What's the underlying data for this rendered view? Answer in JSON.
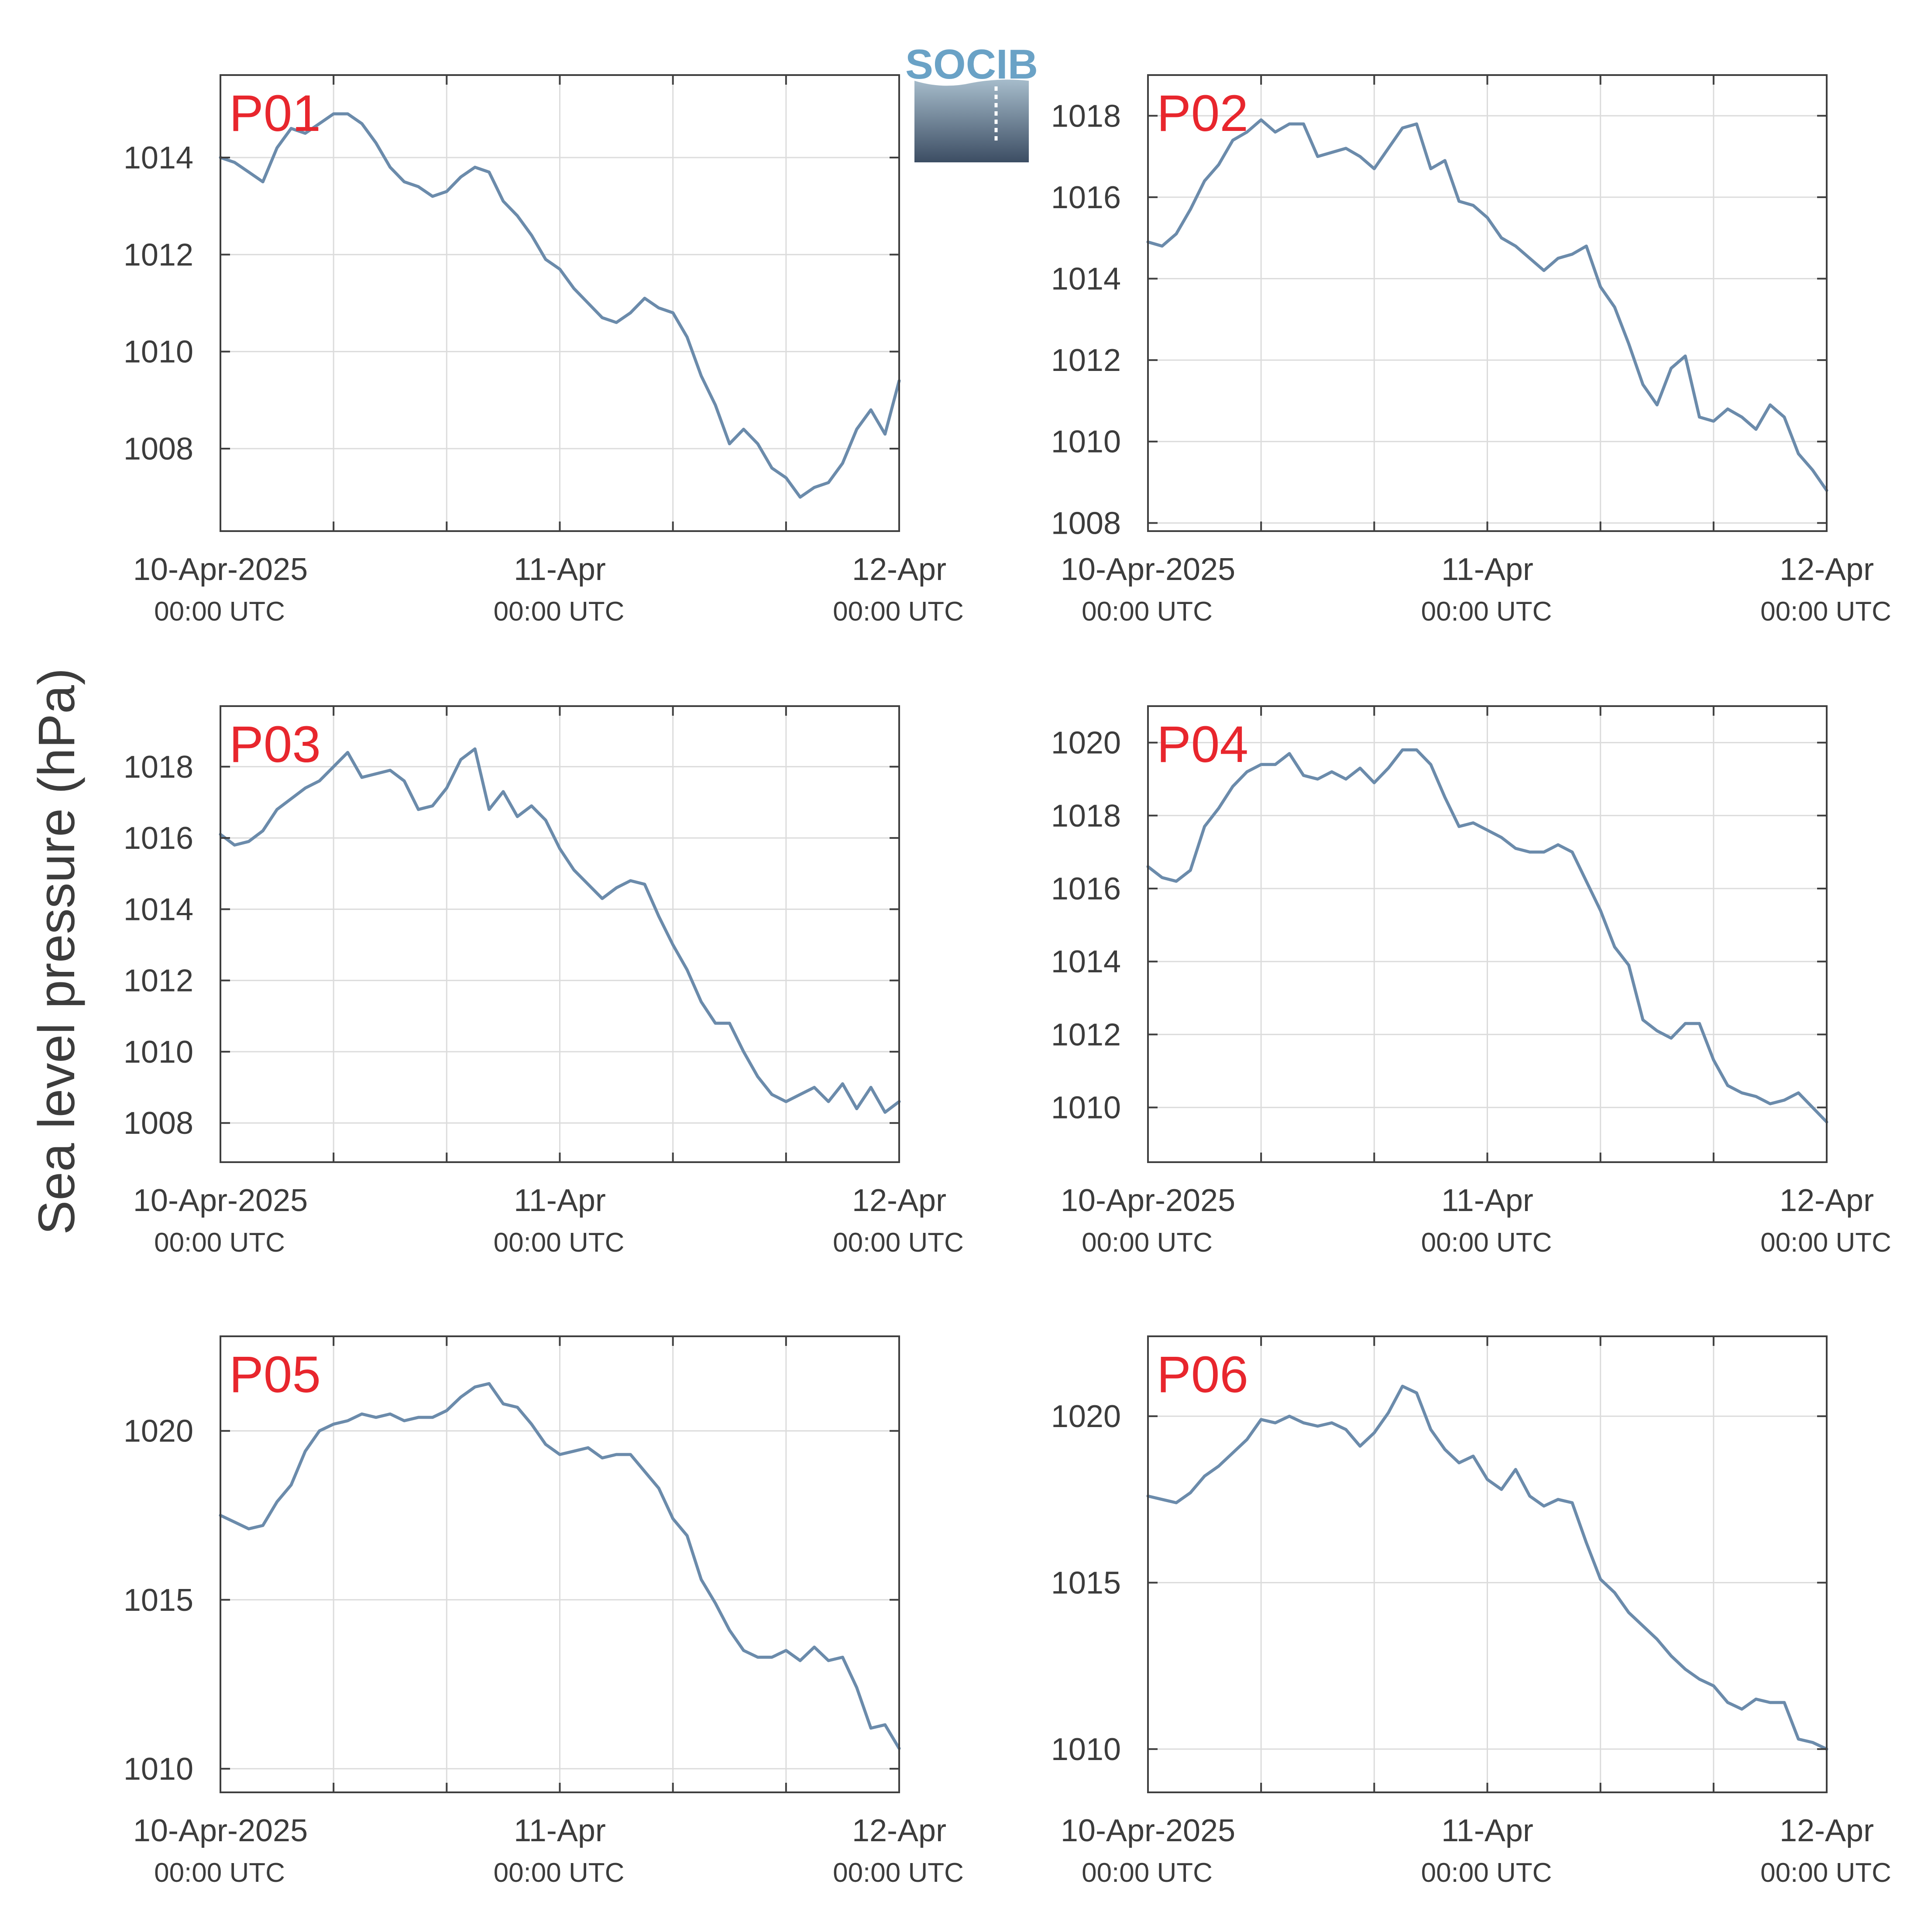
{
  "y_label": "Sea level pressure (hPa)",
  "logo": {
    "text": "SOCIB"
  },
  "colors": {
    "line": "#6b8bab",
    "panel_label": "#e8262d",
    "axis": "#3f3f3f",
    "grid": "#dcdcdc",
    "text": "#3c3c3c"
  },
  "x_axis": {
    "ticks": [
      {
        "t": 0,
        "date": "10-Apr-2025",
        "time": "00:00 UTC"
      },
      {
        "t": 24,
        "date": "11-Apr",
        "time": "00:00 UTC"
      },
      {
        "t": 48,
        "date": "12-Apr",
        "time": "00:00 UTC"
      }
    ]
  },
  "chart_data": [
    {
      "type": "line",
      "label": "P01",
      "ylim": [
        1006.3,
        1015.7
      ],
      "yticks": [
        1008,
        1010,
        1012,
        1014
      ],
      "x_hours": [
        0,
        1,
        2,
        3,
        4,
        5,
        6,
        7,
        8,
        9,
        10,
        11,
        12,
        13,
        14,
        15,
        16,
        17,
        18,
        19,
        20,
        21,
        22,
        23,
        24,
        25,
        26,
        27,
        28,
        29,
        30,
        31,
        32,
        33,
        34,
        35,
        36,
        37,
        38,
        39,
        40,
        41,
        42,
        43,
        44,
        45,
        46,
        47,
        48
      ],
      "values": [
        1014.0,
        1013.9,
        1013.7,
        1013.5,
        1014.2,
        1014.6,
        1014.5,
        1014.7,
        1014.9,
        1014.9,
        1014.7,
        1014.3,
        1013.8,
        1013.5,
        1013.4,
        1013.2,
        1013.3,
        1013.6,
        1013.8,
        1013.7,
        1013.1,
        1012.8,
        1012.4,
        1011.9,
        1011.7,
        1011.3,
        1011.0,
        1010.7,
        1010.6,
        1010.8,
        1011.1,
        1010.9,
        1010.8,
        1010.3,
        1009.5,
        1008.9,
        1008.1,
        1008.4,
        1008.1,
        1007.6,
        1007.4,
        1007.0,
        1007.2,
        1007.3,
        1007.7,
        1008.4,
        1008.8,
        1008.3,
        1009.4
      ]
    },
    {
      "type": "line",
      "label": "P02",
      "ylim": [
        1007.8,
        1019.0
      ],
      "yticks": [
        1008,
        1010,
        1012,
        1014,
        1016,
        1018
      ],
      "x_hours": [
        0,
        1,
        2,
        3,
        4,
        5,
        6,
        7,
        8,
        9,
        10,
        11,
        12,
        13,
        14,
        15,
        16,
        17,
        18,
        19,
        20,
        21,
        22,
        23,
        24,
        25,
        26,
        27,
        28,
        29,
        30,
        31,
        32,
        33,
        34,
        35,
        36,
        37,
        38,
        39,
        40,
        41,
        42,
        43,
        44,
        45,
        46,
        47,
        48
      ],
      "values": [
        1014.9,
        1014.8,
        1015.1,
        1015.7,
        1016.4,
        1016.8,
        1017.4,
        1017.6,
        1017.9,
        1017.6,
        1017.8,
        1017.8,
        1017.0,
        1017.1,
        1017.2,
        1017.0,
        1016.7,
        1017.2,
        1017.7,
        1017.8,
        1016.7,
        1016.9,
        1015.9,
        1015.8,
        1015.5,
        1015.0,
        1014.8,
        1014.5,
        1014.2,
        1014.5,
        1014.6,
        1014.8,
        1013.8,
        1013.3,
        1012.4,
        1011.4,
        1010.9,
        1011.8,
        1012.1,
        1010.6,
        1010.5,
        1010.8,
        1010.6,
        1010.3,
        1010.9,
        1010.6,
        1009.7,
        1009.3,
        1008.8
      ]
    },
    {
      "type": "line",
      "label": "P03",
      "ylim": [
        1006.9,
        1019.7
      ],
      "yticks": [
        1008,
        1010,
        1012,
        1014,
        1016,
        1018
      ],
      "x_hours": [
        0,
        1,
        2,
        3,
        4,
        5,
        6,
        7,
        8,
        9,
        10,
        11,
        12,
        13,
        14,
        15,
        16,
        17,
        18,
        19,
        20,
        21,
        22,
        23,
        24,
        25,
        26,
        27,
        28,
        29,
        30,
        31,
        32,
        33,
        34,
        35,
        36,
        37,
        38,
        39,
        40,
        41,
        42,
        43,
        44,
        45,
        46,
        47,
        48
      ],
      "values": [
        1016.1,
        1015.8,
        1015.9,
        1016.2,
        1016.8,
        1017.1,
        1017.4,
        1017.6,
        1018.0,
        1018.4,
        1017.7,
        1017.8,
        1017.9,
        1017.6,
        1016.8,
        1016.9,
        1017.4,
        1018.2,
        1018.5,
        1016.8,
        1017.3,
        1016.6,
        1016.9,
        1016.5,
        1015.7,
        1015.1,
        1014.7,
        1014.3,
        1014.6,
        1014.8,
        1014.7,
        1013.8,
        1013.0,
        1012.3,
        1011.4,
        1010.8,
        1010.8,
        1010.0,
        1009.3,
        1008.8,
        1008.6,
        1008.8,
        1009.0,
        1008.6,
        1009.1,
        1008.4,
        1009.0,
        1008.3,
        1008.6
      ]
    },
    {
      "type": "line",
      "label": "P04",
      "ylim": [
        1008.5,
        1021.0
      ],
      "yticks": [
        1010,
        1012,
        1014,
        1016,
        1018,
        1020
      ],
      "x_hours": [
        0,
        1,
        2,
        3,
        4,
        5,
        6,
        7,
        8,
        9,
        10,
        11,
        12,
        13,
        14,
        15,
        16,
        17,
        18,
        19,
        20,
        21,
        22,
        23,
        24,
        25,
        26,
        27,
        28,
        29,
        30,
        31,
        32,
        33,
        34,
        35,
        36,
        37,
        38,
        39,
        40,
        41,
        42,
        43,
        44,
        45,
        46,
        47,
        48
      ],
      "values": [
        1016.6,
        1016.3,
        1016.2,
        1016.5,
        1017.7,
        1018.2,
        1018.8,
        1019.2,
        1019.4,
        1019.4,
        1019.7,
        1019.1,
        1019.0,
        1019.2,
        1019.0,
        1019.3,
        1018.9,
        1019.3,
        1019.8,
        1019.8,
        1019.4,
        1018.5,
        1017.7,
        1017.8,
        1017.6,
        1017.4,
        1017.1,
        1017.0,
        1017.0,
        1017.2,
        1017.0,
        1016.2,
        1015.4,
        1014.4,
        1013.9,
        1012.4,
        1012.1,
        1011.9,
        1012.3,
        1012.3,
        1011.3,
        1010.6,
        1010.4,
        1010.3,
        1010.1,
        1010.2,
        1010.4,
        1010.0,
        1009.6
      ]
    },
    {
      "type": "line",
      "label": "P05",
      "ylim": [
        1009.3,
        1022.8
      ],
      "yticks": [
        1010,
        1015,
        1020
      ],
      "x_hours": [
        0,
        1,
        2,
        3,
        4,
        5,
        6,
        7,
        8,
        9,
        10,
        11,
        12,
        13,
        14,
        15,
        16,
        17,
        18,
        19,
        20,
        21,
        22,
        23,
        24,
        25,
        26,
        27,
        28,
        29,
        30,
        31,
        32,
        33,
        34,
        35,
        36,
        37,
        38,
        39,
        40,
        41,
        42,
        43,
        44,
        45,
        46,
        47,
        48
      ],
      "values": [
        1017.5,
        1017.3,
        1017.1,
        1017.2,
        1017.9,
        1018.4,
        1019.4,
        1020.0,
        1020.2,
        1020.3,
        1020.5,
        1020.4,
        1020.5,
        1020.3,
        1020.4,
        1020.4,
        1020.6,
        1021.0,
        1021.3,
        1021.4,
        1020.8,
        1020.7,
        1020.2,
        1019.6,
        1019.3,
        1019.4,
        1019.5,
        1019.2,
        1019.3,
        1019.3,
        1018.8,
        1018.3,
        1017.4,
        1016.9,
        1015.6,
        1014.9,
        1014.1,
        1013.5,
        1013.3,
        1013.3,
        1013.5,
        1013.2,
        1013.6,
        1013.2,
        1013.3,
        1012.4,
        1011.2,
        1011.3,
        1010.6
      ]
    },
    {
      "type": "line",
      "label": "P06",
      "ylim": [
        1008.7,
        1022.4
      ],
      "yticks": [
        1010,
        1015,
        1020
      ],
      "x_hours": [
        0,
        1,
        2,
        3,
        4,
        5,
        6,
        7,
        8,
        9,
        10,
        11,
        12,
        13,
        14,
        15,
        16,
        17,
        18,
        19,
        20,
        21,
        22,
        23,
        24,
        25,
        26,
        27,
        28,
        29,
        30,
        31,
        32,
        33,
        34,
        35,
        36,
        37,
        38,
        39,
        40,
        41,
        42,
        43,
        44,
        45,
        46,
        47,
        48
      ],
      "values": [
        1017.6,
        1017.5,
        1017.4,
        1017.7,
        1018.2,
        1018.5,
        1018.9,
        1019.3,
        1019.9,
        1019.8,
        1020.0,
        1019.8,
        1019.7,
        1019.8,
        1019.6,
        1019.1,
        1019.5,
        1020.1,
        1020.9,
        1020.7,
        1019.6,
        1019.0,
        1018.6,
        1018.8,
        1018.1,
        1017.8,
        1018.4,
        1017.6,
        1017.3,
        1017.5,
        1017.4,
        1016.2,
        1015.1,
        1014.7,
        1014.1,
        1013.7,
        1013.3,
        1012.8,
        1012.4,
        1012.1,
        1011.9,
        1011.4,
        1011.2,
        1011.5,
        1011.4,
        1011.4,
        1010.3,
        1010.2,
        1010.0
      ]
    }
  ]
}
